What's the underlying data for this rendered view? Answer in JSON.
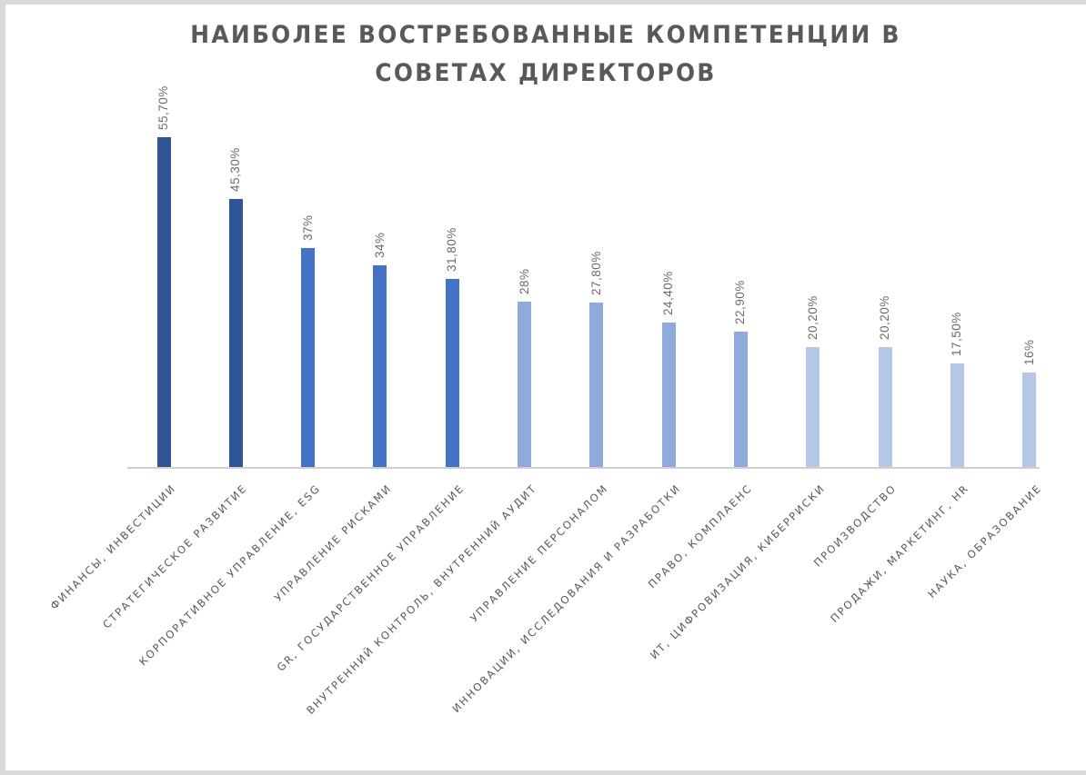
{
  "chart_data": {
    "type": "bar",
    "title": "НАИБОЛЕЕ ВОСТРЕБОВАННЫЕ КОМПЕТЕНЦИИ В СОВЕТАХ ДИРЕКТОРОВ",
    "title_lines": [
      "НАИБОЛЕЕ ВОСТРЕБОВАННЫЕ КОМПЕТЕНЦИИ В",
      "СОВЕТАХ ДИРЕКТОРОВ"
    ],
    "xlabel": "",
    "ylabel": "",
    "ylim": [
      0,
      60
    ],
    "grid": false,
    "legend": null,
    "categories": [
      "ФИНАНСЫ, ИНВЕСТИЦИИ",
      "СТРАТЕГИЧЕСКОЕ РАЗВИТИЕ",
      "КОРПОРАТИВНОЕ УПРАВЛЕНИЕ, ESG",
      "УПРАВЛЕНИЕ РИСКАМИ",
      "GR, ГОСУДАРСТВЕННОЕ УПРАВЛЕНИЕ",
      "ВНУТРЕННИЙ КОНТРОЛЬ, ВНУТРЕННИЙ АУДИТ",
      "УПРАВЛЕНИЕ ПЕРСОНАЛОМ",
      "ИННОВАЦИИ, ИССЛЕДОВАНИЯ И РАЗРАБОТКИ",
      "ПРАВО, КОМПЛАЕНС",
      "ИТ, ЦИФРОВИЗАЦИЯ, КИБЕРРИСКИ",
      "ПРОИЗВОДСТВО",
      "ПРОДАЖИ, МАРКЕТИНГ, HR",
      "НАУКА, ОБРАЗОВАНИЕ"
    ],
    "values": [
      55.7,
      45.3,
      37,
      34,
      31.8,
      28,
      27.8,
      24.4,
      22.9,
      20.2,
      20.2,
      17.5,
      16
    ],
    "data_labels": [
      "55,70%",
      "45,30%",
      "37%",
      "34%",
      "31,80%",
      "28%",
      "27,80%",
      "24,40%",
      "22,90%",
      "20,20%",
      "20,20%",
      "17,50%",
      "16%"
    ],
    "bar_colors": [
      "#2f5597",
      "#2f5597",
      "#4472c4",
      "#4472c4",
      "#4472c4",
      "#8faadc",
      "#8faadc",
      "#8faadc",
      "#8faadc",
      "#b4c7e7",
      "#b4c7e7",
      "#b4c7e7",
      "#b4c7e7"
    ]
  }
}
